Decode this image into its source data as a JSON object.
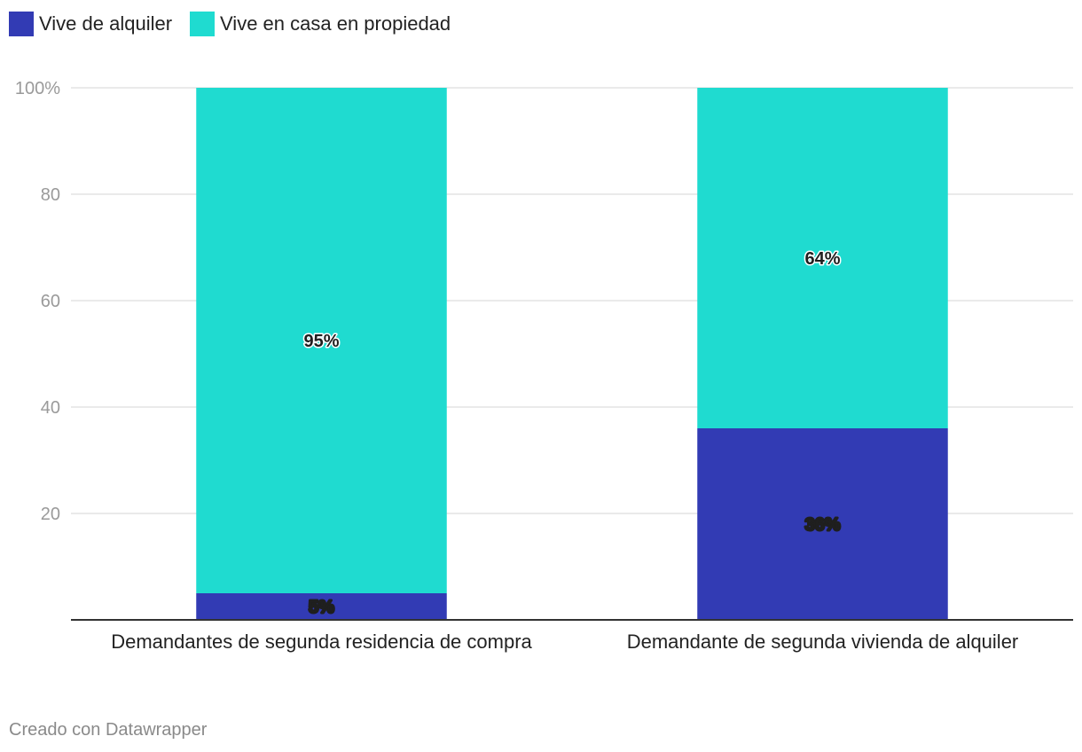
{
  "legend": [
    {
      "label": "Vive de alquiler",
      "color": "#323bb4"
    },
    {
      "label": "Vive en casa en propiedad",
      "color": "#1fdbd0"
    }
  ],
  "footer": {
    "credit": "Creado con Datawrapper"
  },
  "chart_data": {
    "type": "bar",
    "stacked": true,
    "categories": [
      "Demandantes de segunda residencia de compra",
      "Demandante de segunda vivienda de alquiler"
    ],
    "series": [
      {
        "name": "Vive de alquiler",
        "values": [
          5,
          36
        ],
        "labels": [
          "5%",
          "36%"
        ],
        "color": "#323bb4"
      },
      {
        "name": "Vive en casa en propiedad",
        "values": [
          95,
          64
        ],
        "labels": [
          "95%",
          "64%"
        ],
        "color": "#1fdbd0"
      }
    ],
    "ylim": [
      0,
      100
    ],
    "yticks": [
      20,
      40,
      60,
      80,
      100
    ],
    "ytick_labels": [
      "20",
      "40",
      "60",
      "80",
      "100%"
    ],
    "grid": true,
    "legend_position": "top-left"
  }
}
